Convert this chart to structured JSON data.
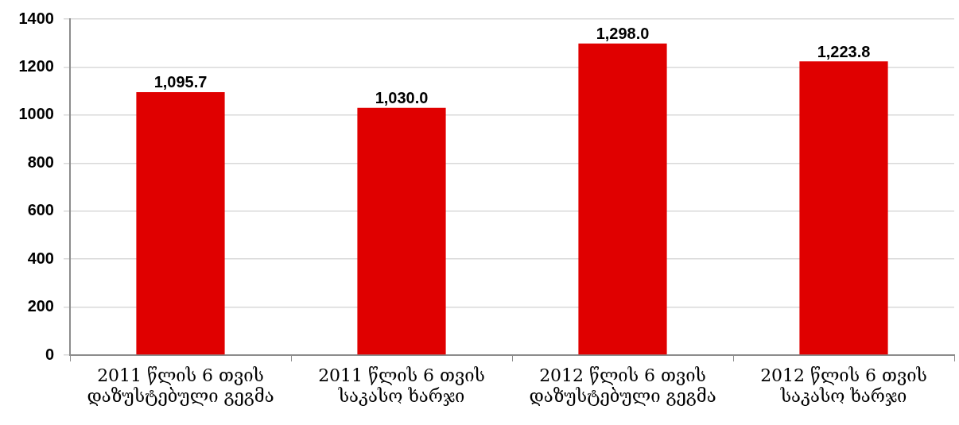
{
  "chart_data": {
    "type": "bar",
    "categories": [
      "2011 წლის 6 თვის დაზუსტებული გეგმა",
      "2011 წლის 6 თვის საკასო ხარჯი",
      "2012 წლის 6 თვის დაზუსტებული გეგმა",
      "2012 წლის 6 თვის საკასო ხარჯი"
    ],
    "values": [
      1095.7,
      1030.0,
      1298.0,
      1223.8
    ],
    "value_labels": [
      "1,095.7",
      "1,030.0",
      "1,298.0",
      "1,223.8"
    ],
    "color": "#e00000",
    "ylim": [
      0,
      1400
    ],
    "yticks": [
      0,
      200,
      400,
      600,
      800,
      1000,
      1200,
      1400
    ],
    "grid": "y"
  }
}
